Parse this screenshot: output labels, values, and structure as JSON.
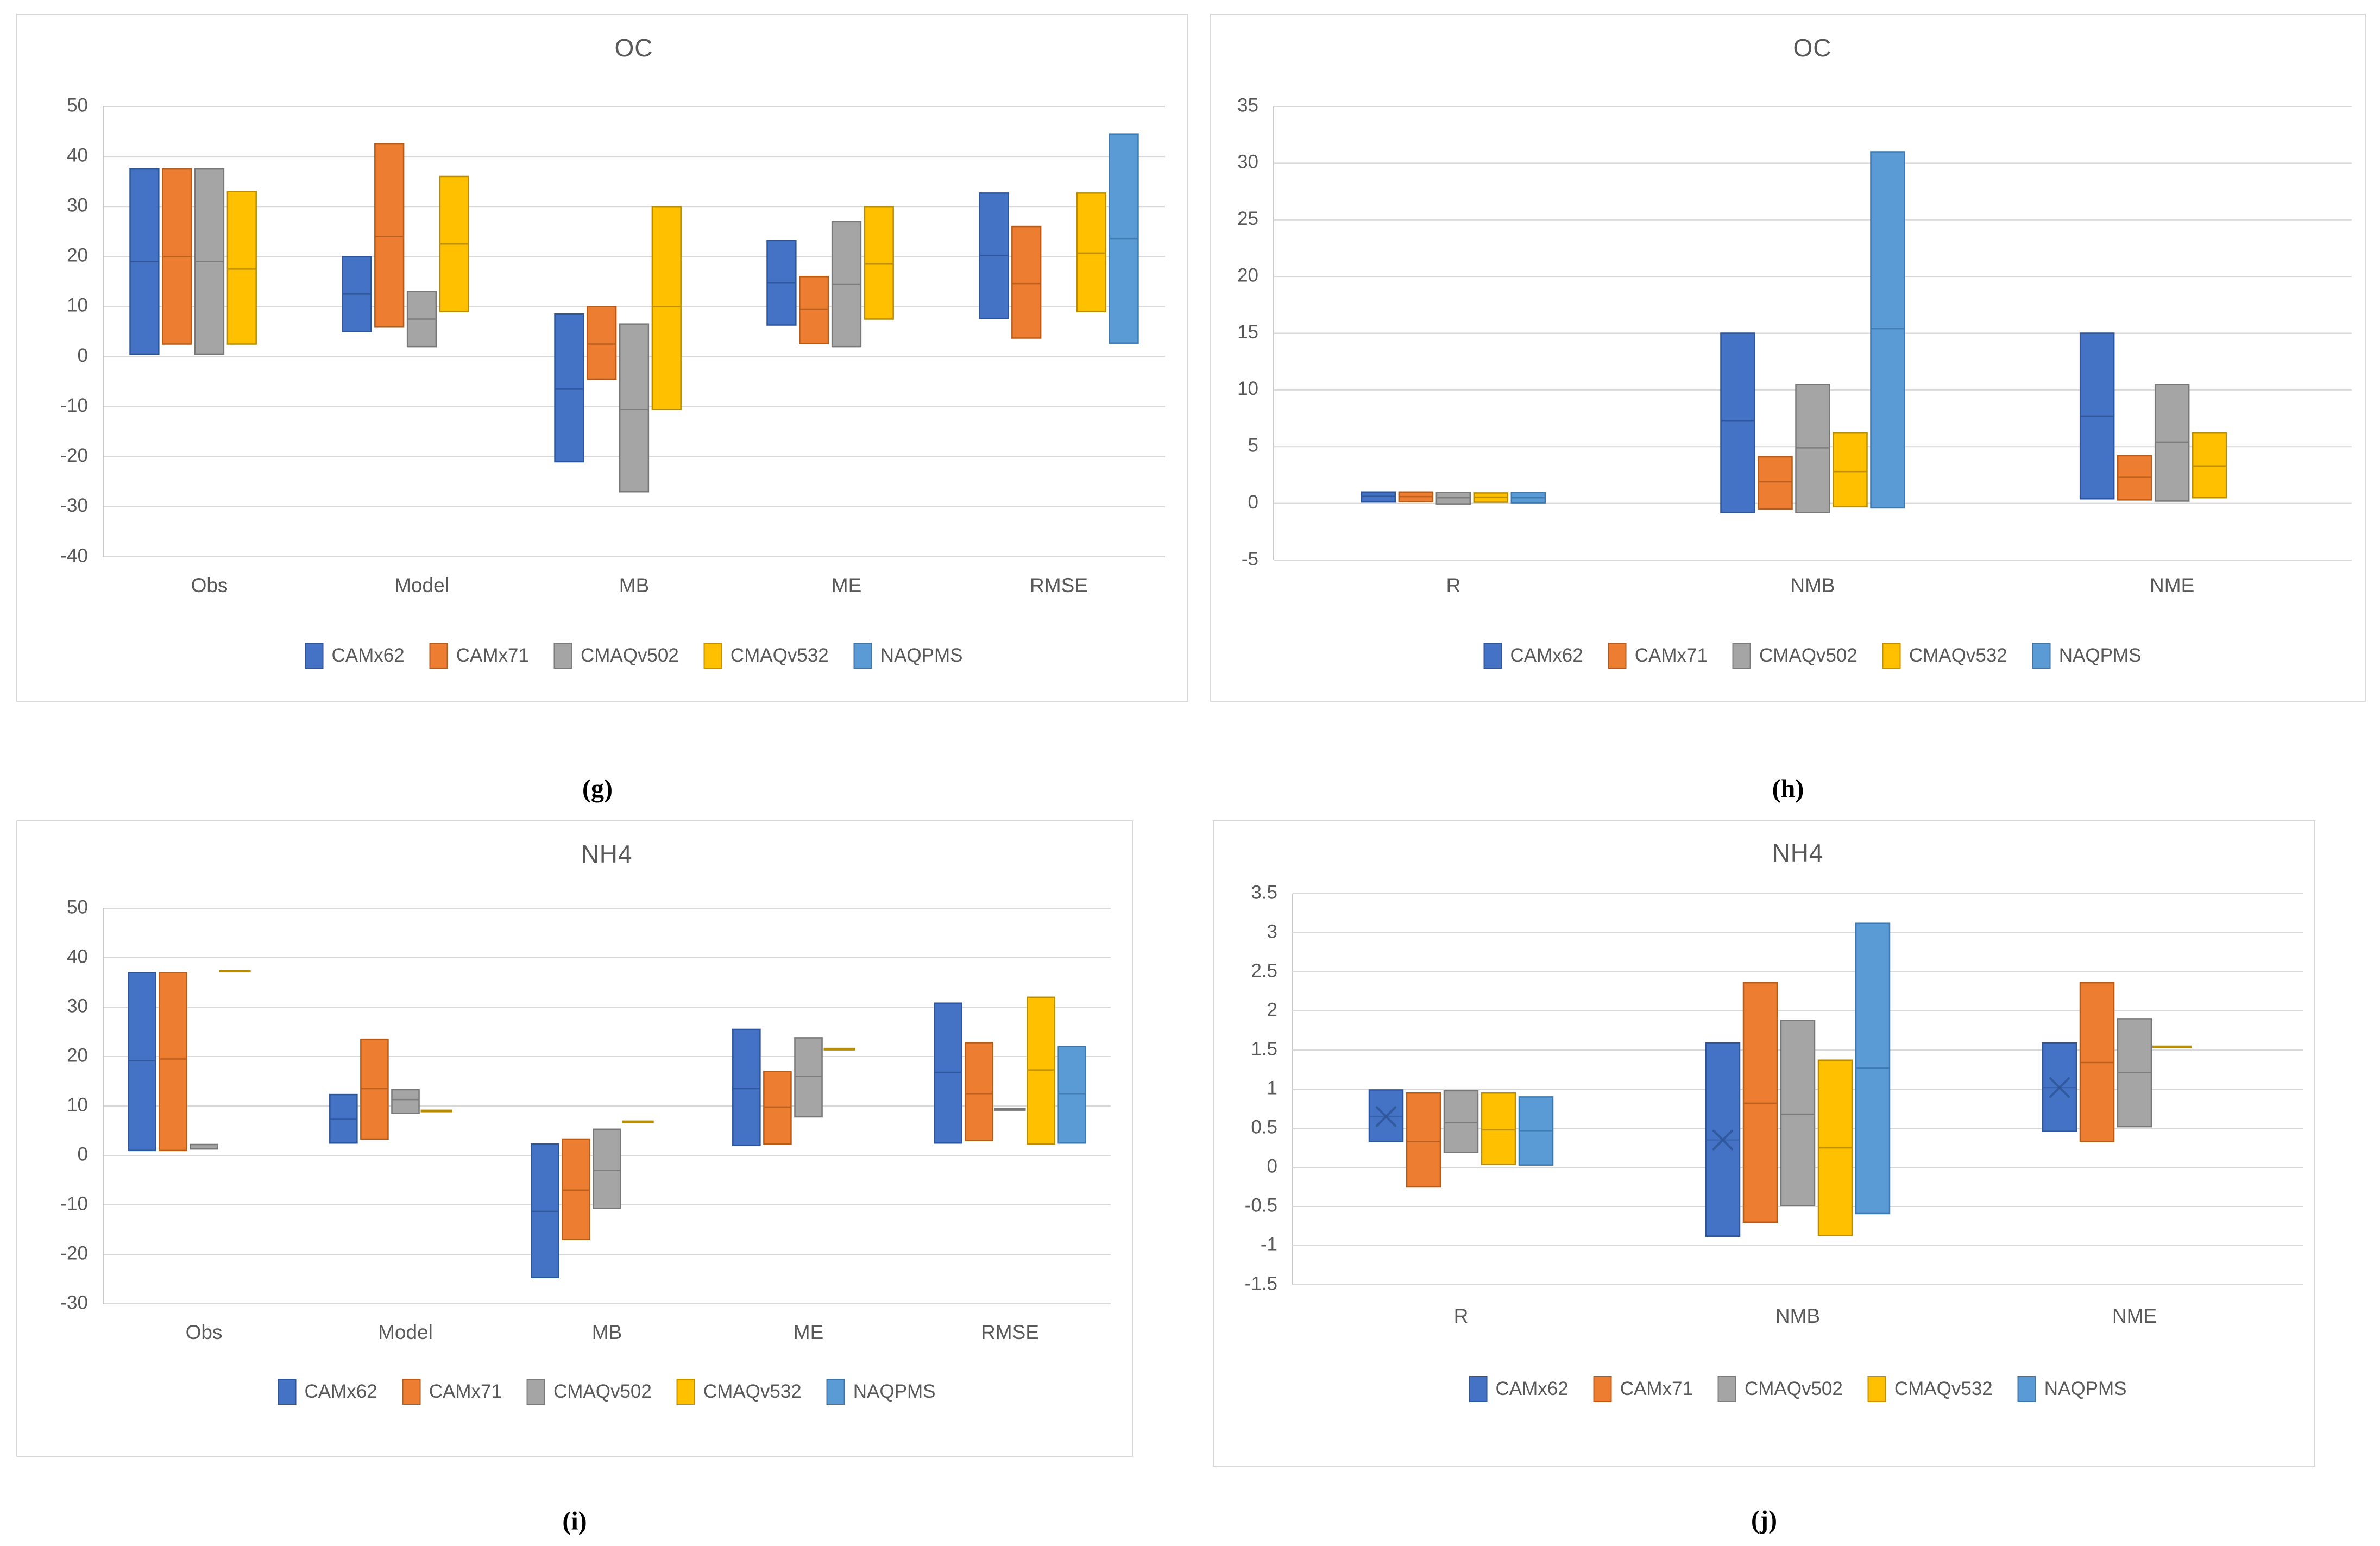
{
  "page": {
    "background": "#ffffff"
  },
  "style": {
    "grid_color": "#D9D9D9",
    "panel_border_color": "#D9D9D9",
    "axis_text_color": "#595959",
    "title_text_color": "#595959",
    "caption_text_color": "#000000"
  },
  "series": [
    {
      "name": "CAMx62",
      "color": "#4472C4",
      "border": "#2E5597"
    },
    {
      "name": "CAMx71",
      "color": "#ED7D31",
      "border": "#B55C1B"
    },
    {
      "name": "CMAQv502",
      "color": "#A5A5A5",
      "border": "#787878"
    },
    {
      "name": "CMAQv532",
      "color": "#FFC000",
      "border": "#B98D00"
    },
    {
      "name": "NAQPMS",
      "color": "#5B9BD5",
      "border": "#3C79B0"
    }
  ],
  "chart_data": [
    {
      "id": "g",
      "type": "bar",
      "variant": "floating-range-with-median",
      "title": "OC",
      "caption": "(g)",
      "xlabel": "",
      "ylabel": "",
      "axis": {
        "min": -40,
        "max": 50,
        "step": 10
      },
      "grid": true,
      "legend_position": "bottom",
      "categories": [
        "Obs",
        "Model",
        "MB",
        "ME",
        "RMSE"
      ],
      "series_ranges": [
        [
          [
            0.5,
            37.5,
            19
          ],
          [
            2.5,
            37.5,
            20
          ],
          [
            0.5,
            37.5,
            19
          ],
          [
            2.5,
            33,
            17.5
          ],
          null
        ],
        [
          [
            5,
            20,
            12.5
          ],
          [
            6,
            42.5,
            24
          ],
          [
            2,
            13,
            7.5
          ],
          [
            9,
            36,
            22.5
          ],
          null
        ],
        [
          [
            -21,
            8.5,
            -6.5
          ],
          [
            -4.5,
            10,
            2.5
          ],
          [
            -27,
            6.5,
            -10.5
          ],
          [
            -10.5,
            30,
            10
          ],
          null
        ],
        [
          [
            6.3,
            23.2,
            14.8
          ],
          [
            2.6,
            16,
            9.5
          ],
          [
            2,
            27,
            14.5
          ],
          [
            7.5,
            30,
            18.6
          ],
          null
        ],
        [
          [
            7.6,
            32.7,
            20.2
          ],
          [
            3.7,
            26,
            14.6
          ],
          null,
          [
            9,
            32.7,
            20.7
          ],
          [
            2.7,
            44.5,
            23.6
          ]
        ]
      ]
    },
    {
      "id": "h",
      "type": "bar",
      "variant": "floating-range-with-median",
      "title": "OC",
      "caption": "(h)",
      "xlabel": "",
      "ylabel": "",
      "axis": {
        "min": -5,
        "max": 35,
        "step": 5
      },
      "grid": true,
      "legend_position": "bottom",
      "categories": [
        "R",
        "NMB",
        "NME"
      ],
      "series_ranges": [
        [
          [
            0.12,
            1.0,
            0.62
          ],
          [
            0.15,
            1.0,
            0.6
          ],
          [
            -0.05,
            0.97,
            0.5
          ],
          [
            0.1,
            0.92,
            0.55
          ],
          [
            0.05,
            0.95,
            0.5
          ]
        ],
        [
          [
            -0.8,
            15,
            7.3
          ],
          [
            -0.5,
            4.1,
            1.9
          ],
          [
            -0.8,
            10.5,
            4.9
          ],
          [
            -0.3,
            6.2,
            2.8
          ],
          [
            -0.4,
            31,
            15.4
          ]
        ],
        [
          [
            0.4,
            15,
            7.7
          ],
          [
            0.3,
            4.2,
            2.3
          ],
          [
            0.2,
            10.5,
            5.4
          ],
          [
            0.5,
            6.2,
            3.3
          ],
          null
        ]
      ]
    },
    {
      "id": "i",
      "type": "bar",
      "variant": "floating-range-with-median",
      "title": "NH4",
      "caption": "(i)",
      "xlabel": "",
      "ylabel": "",
      "axis": {
        "min": -30,
        "max": 50,
        "step": 10
      },
      "grid": true,
      "legend_position": "bottom",
      "categories": [
        "Obs",
        "Model",
        "MB",
        "ME",
        "RMSE"
      ],
      "series_ranges": [
        [
          [
            1,
            37,
            19.2
          ],
          [
            1,
            37,
            19.5
          ],
          [
            1.3,
            2.2,
            null
          ],
          [
            37.3,
            37.3,
            null
          ],
          null
        ],
        [
          [
            2.5,
            12.3,
            7.3
          ],
          [
            3.3,
            23.5,
            13.5
          ],
          [
            8.5,
            13.3,
            11.3
          ],
          [
            9,
            9,
            null
          ],
          null
        ],
        [
          [
            -24.7,
            2.3,
            -11.3
          ],
          [
            -17,
            3.3,
            -7
          ],
          [
            -10.7,
            5.3,
            -3
          ],
          [
            6.8,
            6.8,
            null
          ],
          null
        ],
        [
          [
            2,
            25.5,
            13.5
          ],
          [
            2.3,
            17,
            9.8
          ],
          [
            7.8,
            23.8,
            16
          ],
          [
            21.5,
            21.5,
            null
          ],
          null
        ],
        [
          [
            2.5,
            30.8,
            16.8
          ],
          [
            3,
            22.8,
            12.5
          ],
          [
            9.3,
            9.3,
            null
          ],
          [
            2.3,
            32,
            17.3
          ],
          [
            2.5,
            22,
            12.5
          ]
        ]
      ]
    },
    {
      "id": "j",
      "type": "bar",
      "variant": "floating-range-with-median",
      "title": "NH4",
      "caption": "(j)",
      "xlabel": "",
      "ylabel": "",
      "axis": {
        "min": -1.5,
        "max": 3.5,
        "step": 0.5
      },
      "grid": true,
      "legend_position": "bottom",
      "x_marker_series": [
        0
      ],
      "categories": [
        "R",
        "NMB",
        "NME"
      ],
      "series_ranges": [
        [
          [
            0.33,
            0.99,
            0.65
          ],
          [
            -0.25,
            0.95,
            0.33
          ],
          [
            0.19,
            0.98,
            0.57
          ],
          [
            0.04,
            0.95,
            0.48
          ],
          [
            0.03,
            0.9,
            0.47
          ]
        ],
        [
          [
            -0.88,
            1.59,
            0.35
          ],
          [
            -0.7,
            2.36,
            0.82
          ],
          [
            -0.49,
            1.88,
            0.68
          ],
          [
            -0.87,
            1.37,
            0.25
          ],
          [
            -0.59,
            3.12,
            1.27
          ]
        ],
        [
          [
            0.46,
            1.59,
            1.02
          ],
          [
            0.33,
            2.36,
            1.34
          ],
          [
            0.52,
            1.9,
            1.21
          ],
          [
            1.54,
            1.54,
            null
          ],
          null
        ]
      ]
    }
  ]
}
